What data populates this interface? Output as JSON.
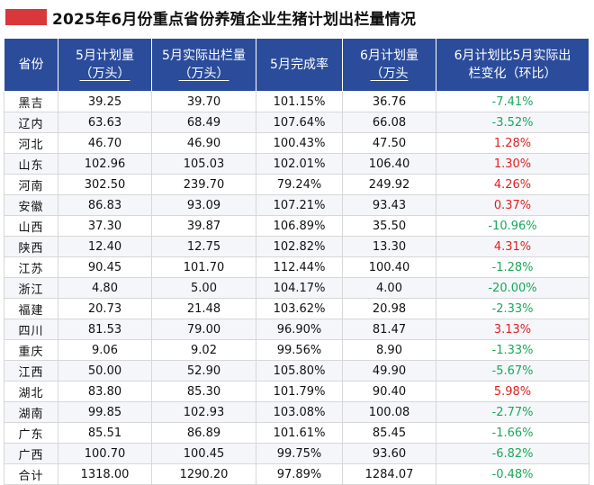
{
  "title": "2025年6月份重点省份养殖企业生猪计划出栏量情况",
  "colors": {
    "header_bg": "#2b4c9b",
    "accent": "#d9383a",
    "negative": "#1aa85a",
    "positive": "#e02020"
  },
  "columns": [
    {
      "line1": "省份",
      "line2": ""
    },
    {
      "line1": "5月计划量",
      "line2": "（万头）"
    },
    {
      "line1": "5月实际出栏量",
      "line2": "（万头）"
    },
    {
      "line1": "5月完成率",
      "line2": ""
    },
    {
      "line1": "6月计划量",
      "line2": "（万头"
    },
    {
      "line1": "6月计划比5月实际出",
      "line2": "栏变化（环比）"
    }
  ],
  "rows": [
    {
      "province": "黑吉",
      "may_plan": "39.25",
      "may_actual": "39.70",
      "may_rate": "101.15%",
      "jun_plan": "36.76",
      "change": "-7.41%",
      "trend": "neg"
    },
    {
      "province": "辽内",
      "may_plan": "63.63",
      "may_actual": "68.49",
      "may_rate": "107.64%",
      "jun_plan": "66.08",
      "change": "-3.52%",
      "trend": "neg"
    },
    {
      "province": "河北",
      "may_plan": "46.70",
      "may_actual": "46.90",
      "may_rate": "100.43%",
      "jun_plan": "47.50",
      "change": "1.28%",
      "trend": "pos"
    },
    {
      "province": "山东",
      "may_plan": "102.96",
      "may_actual": "105.03",
      "may_rate": "102.01%",
      "jun_plan": "106.40",
      "change": "1.30%",
      "trend": "pos"
    },
    {
      "province": "河南",
      "may_plan": "302.50",
      "may_actual": "239.70",
      "may_rate": "79.24%",
      "jun_plan": "249.92",
      "change": "4.26%",
      "trend": "pos"
    },
    {
      "province": "安徽",
      "may_plan": "86.83",
      "may_actual": "93.09",
      "may_rate": "107.21%",
      "jun_plan": "93.43",
      "change": "0.37%",
      "trend": "pos"
    },
    {
      "province": "山西",
      "may_plan": "37.30",
      "may_actual": "39.87",
      "may_rate": "106.89%",
      "jun_plan": "35.50",
      "change": "-10.96%",
      "trend": "neg"
    },
    {
      "province": "陕西",
      "may_plan": "12.40",
      "may_actual": "12.75",
      "may_rate": "102.82%",
      "jun_plan": "13.30",
      "change": "4.31%",
      "trend": "pos"
    },
    {
      "province": "江苏",
      "may_plan": "90.45",
      "may_actual": "101.70",
      "may_rate": "112.44%",
      "jun_plan": "100.40",
      "change": "-1.28%",
      "trend": "neg"
    },
    {
      "province": "浙江",
      "may_plan": "4.80",
      "may_actual": "5.00",
      "may_rate": "104.17%",
      "jun_plan": "4.00",
      "change": "-20.00%",
      "trend": "neg"
    },
    {
      "province": "福建",
      "may_plan": "20.73",
      "may_actual": "21.48",
      "may_rate": "103.62%",
      "jun_plan": "20.98",
      "change": "-2.33%",
      "trend": "neg"
    },
    {
      "province": "四川",
      "may_plan": "81.53",
      "may_actual": "79.00",
      "may_rate": "96.90%",
      "jun_plan": "81.47",
      "change": "3.13%",
      "trend": "pos"
    },
    {
      "province": "重庆",
      "may_plan": "9.06",
      "may_actual": "9.02",
      "may_rate": "99.56%",
      "jun_plan": "8.90",
      "change": "-1.33%",
      "trend": "neg"
    },
    {
      "province": "江西",
      "may_plan": "50.00",
      "may_actual": "52.90",
      "may_rate": "105.80%",
      "jun_plan": "49.90",
      "change": "-5.67%",
      "trend": "neg"
    },
    {
      "province": "湖北",
      "may_plan": "83.80",
      "may_actual": "85.30",
      "may_rate": "101.79%",
      "jun_plan": "90.40",
      "change": "5.98%",
      "trend": "pos"
    },
    {
      "province": "湖南",
      "may_plan": "99.85",
      "may_actual": "102.93",
      "may_rate": "103.08%",
      "jun_plan": "100.08",
      "change": "-2.77%",
      "trend": "neg"
    },
    {
      "province": "广东",
      "may_plan": "85.51",
      "may_actual": "86.89",
      "may_rate": "101.61%",
      "jun_plan": "85.45",
      "change": "-1.66%",
      "trend": "neg"
    },
    {
      "province": "广西",
      "may_plan": "100.70",
      "may_actual": "100.45",
      "may_rate": "99.75%",
      "jun_plan": "93.60",
      "change": "-6.82%",
      "trend": "neg"
    },
    {
      "province": "合计",
      "may_plan": "1318.00",
      "may_actual": "1290.20",
      "may_rate": "97.89%",
      "jun_plan": "1284.07",
      "change": "-0.48%",
      "trend": "neg"
    }
  ]
}
